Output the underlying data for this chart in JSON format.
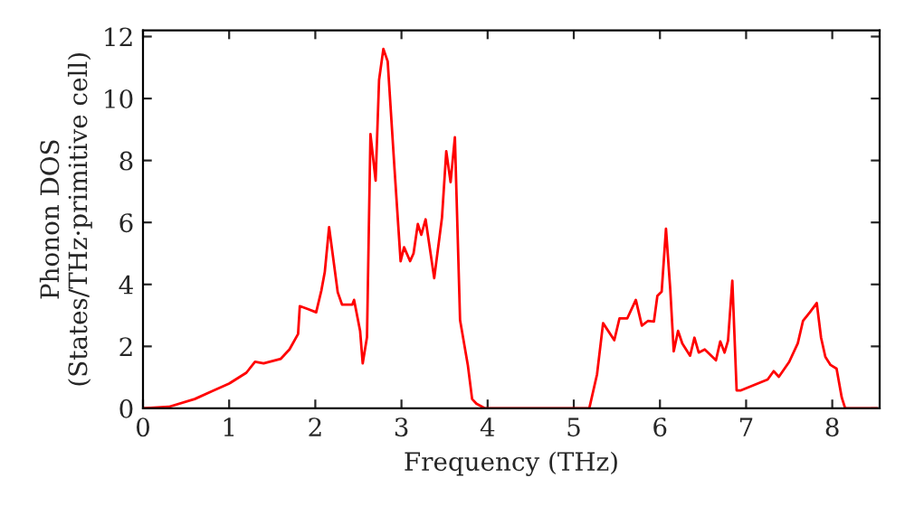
{
  "chart_data": {
    "type": "line",
    "xlabel": "Frequency (THz)",
    "ylabel": "Phonon DOS\n(States/THz·primitive cell)",
    "xlim": [
      0,
      8.55
    ],
    "ylim": [
      0,
      12.2
    ],
    "xticks": [
      0,
      1,
      2,
      3,
      4,
      5,
      6,
      7,
      8
    ],
    "yticks": [
      0,
      2,
      4,
      6,
      8,
      10,
      12
    ],
    "grid": false,
    "marker": "none",
    "line_style": "solid",
    "series": [
      {
        "color": "#ff0000",
        "x": [
          0,
          0.3,
          0.6,
          0.8,
          1.0,
          1.2,
          1.3,
          1.4,
          1.6,
          1.7,
          1.8,
          1.82,
          1.92,
          2.01,
          2.07,
          2.11,
          2.16,
          2.26,
          2.31,
          2.43,
          2.45,
          2.52,
          2.55,
          2.6,
          2.64,
          2.7,
          2.74,
          2.79,
          2.84,
          2.92,
          2.99,
          3.03,
          3.1,
          3.14,
          3.19,
          3.23,
          3.28,
          3.38,
          3.47,
          3.52,
          3.57,
          3.62,
          3.68,
          3.77,
          3.82,
          3.87,
          3.97,
          5.18,
          5.27,
          5.34,
          5.47,
          5.53,
          5.62,
          5.72,
          5.79,
          5.86,
          5.93,
          5.97,
          6.02,
          6.07,
          6.12,
          6.16,
          6.21,
          6.26,
          6.35,
          6.4,
          6.45,
          6.52,
          6.65,
          6.7,
          6.75,
          6.79,
          6.84,
          6.89,
          6.94,
          7.25,
          7.32,
          7.38,
          7.5,
          7.6,
          7.66,
          7.74,
          7.82,
          7.87,
          7.92,
          7.98,
          8.05,
          8.11,
          8.15,
          8.52
        ],
        "values": [
          0,
          0.05,
          0.3,
          0.55,
          0.8,
          1.15,
          1.5,
          1.45,
          1.6,
          1.9,
          2.4,
          3.3,
          3.2,
          3.1,
          3.8,
          4.4,
          5.85,
          3.75,
          3.35,
          3.35,
          3.5,
          2.5,
          1.45,
          2.3,
          8.85,
          7.35,
          10.6,
          11.6,
          11.2,
          7.7,
          4.75,
          5.2,
          4.75,
          5.0,
          5.95,
          5.6,
          6.1,
          4.2,
          6.15,
          8.3,
          7.3,
          8.75,
          2.85,
          1.4,
          0.3,
          0.15,
          0,
          0,
          1.1,
          2.75,
          2.2,
          2.9,
          2.9,
          3.5,
          2.67,
          2.82,
          2.8,
          3.63,
          3.77,
          5.8,
          3.83,
          1.84,
          2.5,
          2.09,
          1.7,
          2.28,
          1.8,
          1.9,
          1.55,
          2.16,
          1.8,
          2.18,
          4.12,
          0.58,
          0.58,
          0.93,
          1.2,
          1.02,
          1.5,
          2.1,
          2.82,
          3.1,
          3.4,
          2.28,
          1.66,
          1.4,
          1.28,
          0.35,
          0,
          0
        ]
      }
    ]
  }
}
